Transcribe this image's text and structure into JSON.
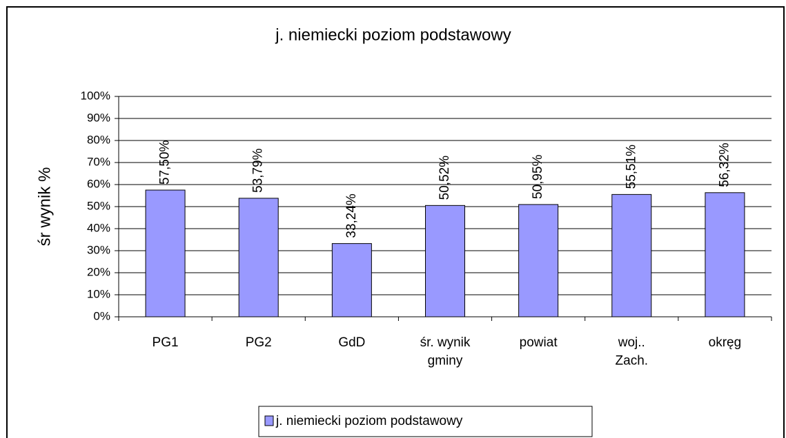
{
  "chart_data": {
    "type": "bar",
    "title": "j. niemiecki poziom podstawowy",
    "y_label": "śr wynik %",
    "categories": [
      "PG1",
      "PG2",
      "GdD",
      "śr. wynik\ngminy",
      "powiat",
      "woj..\nZach.",
      "okręg"
    ],
    "series": [
      {
        "name": "j. niemiecki poziom podstawowy",
        "color": "#9999ff",
        "values": [
          57.5,
          53.79,
          33.24,
          50.52,
          50.95,
          55.51,
          56.32
        ],
        "value_labels": [
          "57,50%",
          "53,79%",
          "33,24%",
          "50,52%",
          "50,95%",
          "55,51%",
          "56,32%"
        ]
      }
    ],
    "ylim": [
      0,
      100
    ],
    "yticks": [
      {
        "value": 0,
        "label": "0%"
      },
      {
        "value": 10,
        "label": "10%"
      },
      {
        "value": 20,
        "label": "20%"
      },
      {
        "value": 30,
        "label": "30%"
      },
      {
        "value": 40,
        "label": "40%"
      },
      {
        "value": 50,
        "label": "50%"
      },
      {
        "value": 60,
        "label": "60%"
      },
      {
        "value": 70,
        "label": "70%"
      },
      {
        "value": 80,
        "label": "80%"
      },
      {
        "value": 90,
        "label": "90%"
      },
      {
        "value": 100,
        "label": "100%"
      }
    ],
    "grid": true,
    "legend": "bottom"
  }
}
